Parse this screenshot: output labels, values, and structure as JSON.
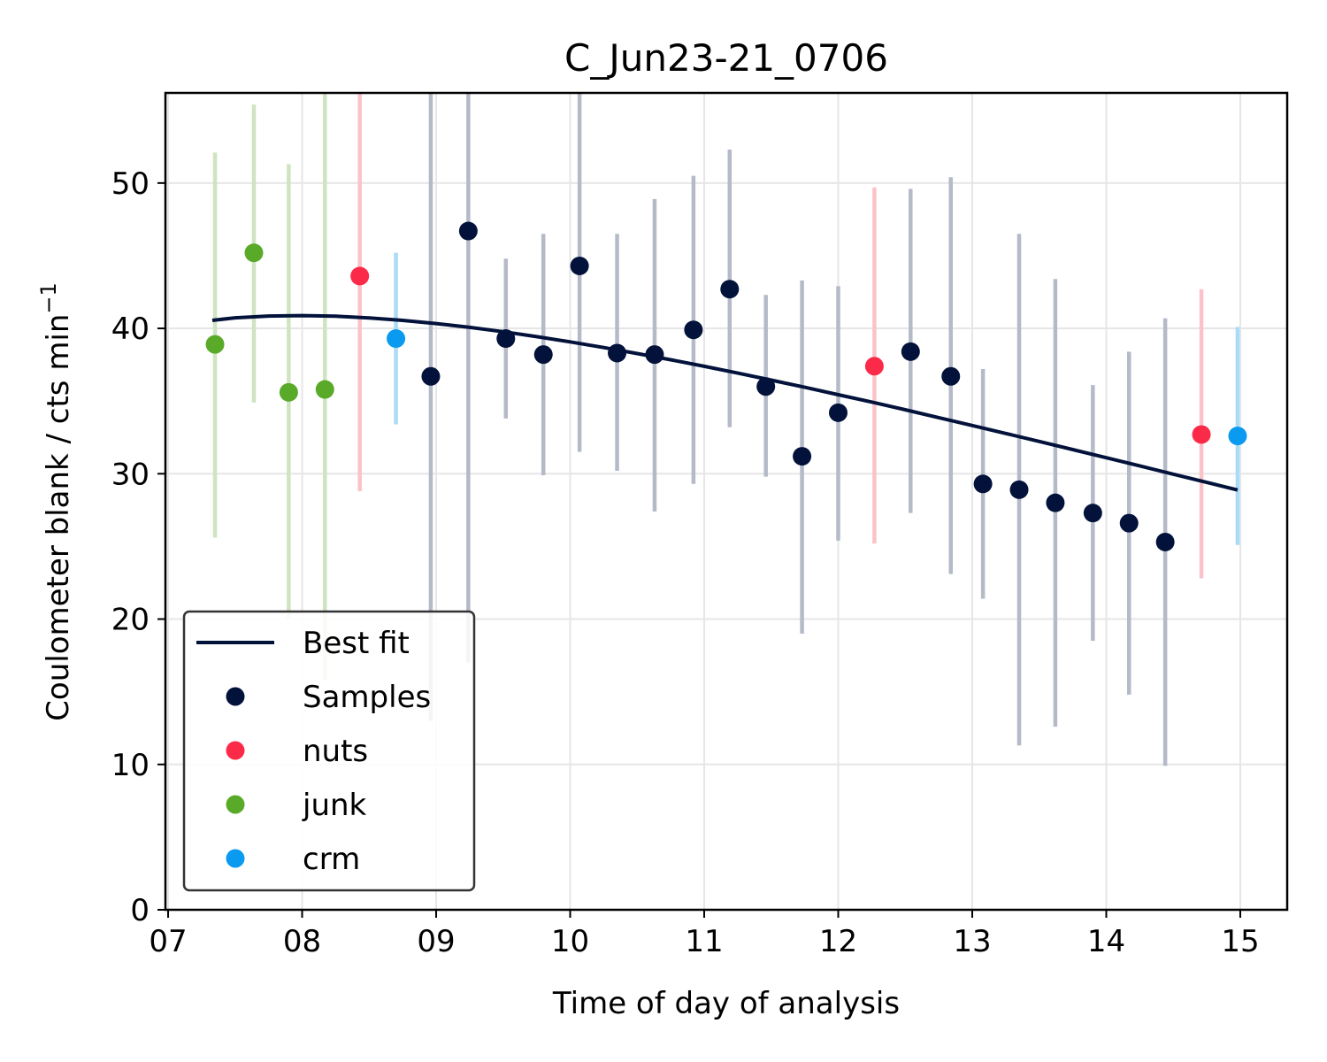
{
  "chart_data": {
    "type": "scatter",
    "title": "C_Jun23-21_0706",
    "xlabel": "Time of day of analysis",
    "ylabel_main": "Coulometer blank / cts min",
    "ylabel_sup": "−1",
    "xlim": [
      6.98,
      15.35
    ],
    "ylim": [
      0,
      56.2
    ],
    "xticks": [
      7,
      8,
      9,
      10,
      11,
      12,
      13,
      14,
      15
    ],
    "xtick_labels": [
      "07",
      "08",
      "09",
      "10",
      "11",
      "12",
      "13",
      "14",
      "15"
    ],
    "yticks": [
      0,
      10,
      20,
      30,
      40,
      50
    ],
    "ytick_labels": [
      "0",
      "10",
      "20",
      "30",
      "40",
      "50"
    ],
    "grid": true,
    "legend_position": "lower-left",
    "best_fit": {
      "name": "Best fit",
      "color": "#02123a",
      "x": [
        7.33,
        7.5,
        7.75,
        8.0,
        8.25,
        8.5,
        8.75,
        9.0,
        9.25,
        9.5,
        9.75,
        10.0,
        10.25,
        10.5,
        10.75,
        11.0,
        11.25,
        11.5,
        11.75,
        12.0,
        12.25,
        12.5,
        12.75,
        13.0,
        13.25,
        13.5,
        13.75,
        14.0,
        14.25,
        14.5,
        14.75,
        14.98
      ],
      "y": [
        40.55,
        40.73,
        40.85,
        40.88,
        40.84,
        40.72,
        40.55,
        40.33,
        40.07,
        39.77,
        39.43,
        39.07,
        38.68,
        38.27,
        37.84,
        37.39,
        36.92,
        36.44,
        35.95,
        35.44,
        34.93,
        34.4,
        33.86,
        33.32,
        32.77,
        32.22,
        31.66,
        31.1,
        30.54,
        29.97,
        29.4,
        28.88
      ]
    },
    "series": [
      {
        "name": "Samples",
        "color": "#02123a",
        "err_color": "#b4bac8",
        "x": [
          8.96,
          9.24,
          9.52,
          9.8,
          10.07,
          10.35,
          10.63,
          10.92,
          11.19,
          11.46,
          11.73,
          12.0,
          12.54,
          12.84,
          13.08,
          13.35,
          13.62,
          13.9,
          14.17,
          14.44
        ],
        "y": [
          36.7,
          46.7,
          39.3,
          38.2,
          44.3,
          38.3,
          38.2,
          39.9,
          42.7,
          36.0,
          31.2,
          34.2,
          38.4,
          36.7,
          29.3,
          28.9,
          28.0,
          27.3,
          26.6,
          25.3
        ],
        "lo": [
          13.0,
          17.0,
          33.8,
          29.9,
          31.5,
          30.2,
          27.4,
          29.3,
          33.2,
          29.8,
          19.0,
          25.4,
          27.3,
          23.1,
          21.4,
          11.3,
          12.6,
          18.5,
          14.8,
          9.9
        ],
        "hi": [
          56.2,
          56.2,
          44.8,
          46.5,
          56.2,
          46.5,
          48.9,
          50.5,
          52.3,
          42.3,
          43.3,
          42.9,
          49.6,
          50.4,
          37.2,
          46.5,
          43.4,
          36.1,
          38.4,
          40.7
        ]
      },
      {
        "name": "nuts",
        "color": "#fb2a48",
        "err_color": "#fbc2ca",
        "x": [
          8.43,
          12.27,
          14.71
        ],
        "y": [
          43.6,
          37.4,
          32.7
        ],
        "lo": [
          28.8,
          25.2,
          22.8
        ],
        "hi": [
          56.2,
          49.7,
          42.7
        ]
      },
      {
        "name": "junk",
        "color": "#5aaa2a",
        "err_color": "#cfe4c0",
        "x": [
          7.35,
          7.64,
          7.9,
          8.17
        ],
        "y": [
          38.9,
          45.2,
          35.6,
          35.8
        ],
        "lo": [
          25.6,
          34.9,
          20.0,
          15.8
        ],
        "hi": [
          52.1,
          55.4,
          51.3,
          56.2
        ]
      },
      {
        "name": "crm",
        "color": "#0a9af0",
        "err_color": "#a8dcf8",
        "x": [
          8.7,
          14.98
        ],
        "y": [
          39.3,
          32.6
        ],
        "lo": [
          33.4,
          25.1
        ],
        "hi": [
          45.2,
          40.1
        ]
      }
    ]
  }
}
